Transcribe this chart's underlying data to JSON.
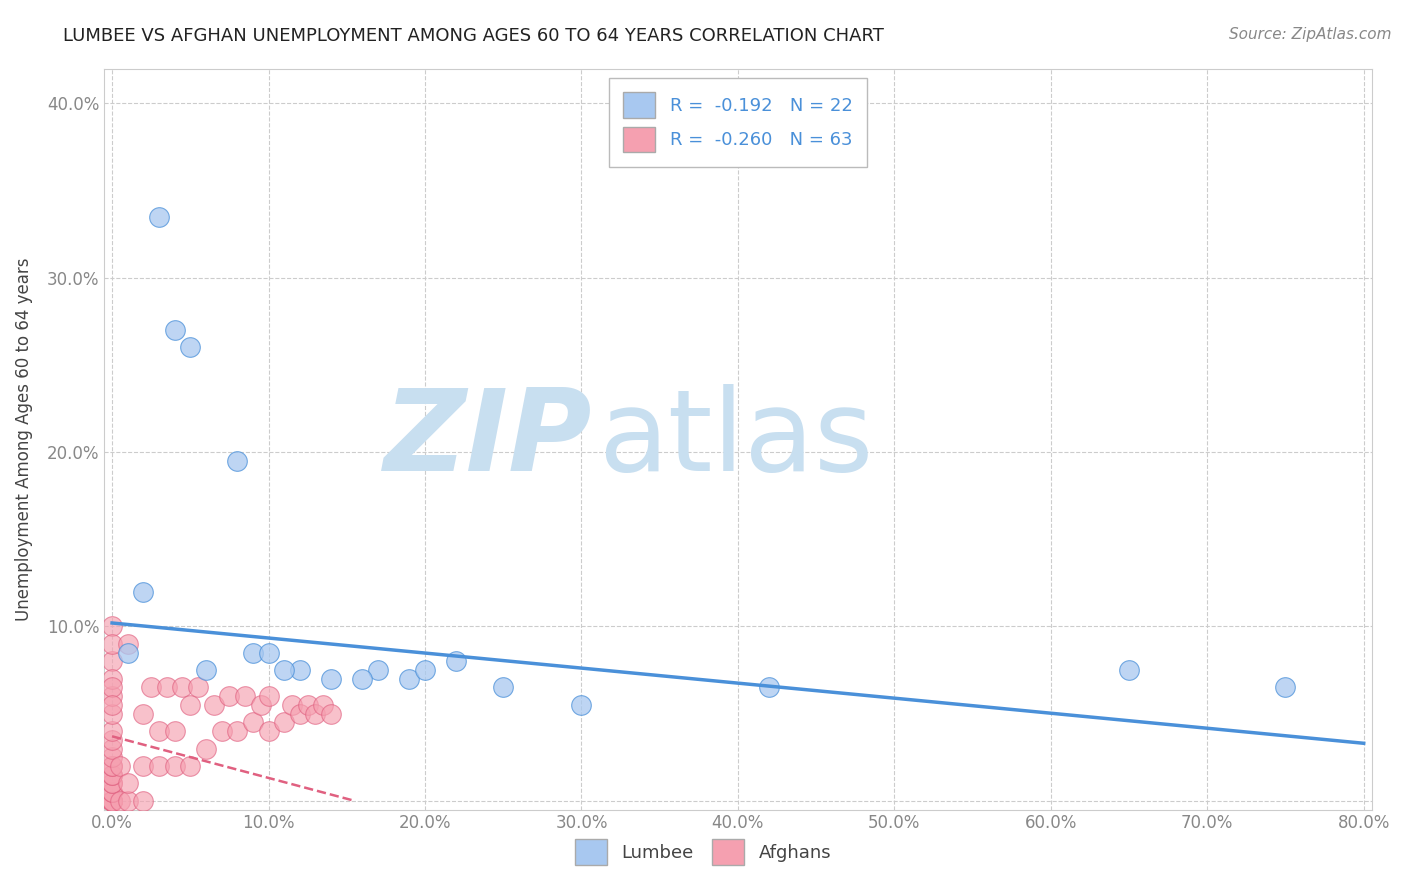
{
  "title": "LUMBEE VS AFGHAN UNEMPLOYMENT AMONG AGES 60 TO 64 YEARS CORRELATION CHART",
  "source": "Source: ZipAtlas.com",
  "ylabel": "Unemployment Among Ages 60 to 64 years",
  "xlim": [
    -0.005,
    0.805
  ],
  "ylim": [
    -0.005,
    0.42
  ],
  "xticks": [
    0.0,
    0.1,
    0.2,
    0.3,
    0.4,
    0.5,
    0.6,
    0.7,
    0.8
  ],
  "xticklabels": [
    "0.0%",
    "10.0%",
    "20.0%",
    "30.0%",
    "40.0%",
    "50.0%",
    "60.0%",
    "70.0%",
    "80.0%"
  ],
  "yticks": [
    0.0,
    0.1,
    0.2,
    0.3,
    0.4
  ],
  "yticklabels": [
    "",
    "10.0%",
    "20.0%",
    "30.0%",
    "40.0%"
  ],
  "lumbee_R": "-0.192",
  "lumbee_N": "22",
  "afghan_R": "-0.260",
  "afghan_N": "63",
  "lumbee_color": "#a8c8f0",
  "afghan_color": "#f5a0b0",
  "lumbee_line_color": "#4a90d9",
  "afghan_line_color": "#e06080",
  "watermark_zip": "ZIP",
  "watermark_atlas": "atlas",
  "watermark_color": "#c8dff0",
  "legend_label_lumbee": "Lumbee",
  "legend_label_afghan": "Afghans",
  "lumbee_x": [
    0.02,
    0.03,
    0.04,
    0.05,
    0.08,
    0.09,
    0.1,
    0.12,
    0.14,
    0.17,
    0.19,
    0.2,
    0.22,
    0.25,
    0.3,
    0.42,
    0.65,
    0.75,
    0.01,
    0.06,
    0.11,
    0.16
  ],
  "lumbee_y": [
    0.12,
    0.335,
    0.27,
    0.26,
    0.195,
    0.085,
    0.085,
    0.075,
    0.07,
    0.075,
    0.07,
    0.075,
    0.08,
    0.065,
    0.055,
    0.065,
    0.075,
    0.065,
    0.085,
    0.075,
    0.075,
    0.07
  ],
  "afghan_x": [
    0.0,
    0.0,
    0.0,
    0.0,
    0.0,
    0.0,
    0.0,
    0.0,
    0.0,
    0.0,
    0.0,
    0.0,
    0.0,
    0.0,
    0.0,
    0.0,
    0.0,
    0.0,
    0.0,
    0.0,
    0.0,
    0.0,
    0.0,
    0.0,
    0.0,
    0.0,
    0.0,
    0.0,
    0.005,
    0.005,
    0.01,
    0.01,
    0.01,
    0.02,
    0.02,
    0.02,
    0.025,
    0.03,
    0.03,
    0.035,
    0.04,
    0.04,
    0.045,
    0.05,
    0.05,
    0.055,
    0.06,
    0.065,
    0.07,
    0.075,
    0.08,
    0.085,
    0.09,
    0.095,
    0.1,
    0.1,
    0.11,
    0.115,
    0.12,
    0.125,
    0.13,
    0.135,
    0.14
  ],
  "afghan_y": [
    0.0,
    0.0,
    0.0,
    0.0,
    0.0,
    0.0,
    0.0,
    0.0,
    0.005,
    0.005,
    0.01,
    0.01,
    0.015,
    0.015,
    0.02,
    0.02,
    0.025,
    0.03,
    0.035,
    0.04,
    0.05,
    0.06,
    0.1,
    0.08,
    0.09,
    0.07,
    0.065,
    0.055,
    0.0,
    0.02,
    0.0,
    0.01,
    0.09,
    0.0,
    0.02,
    0.05,
    0.065,
    0.02,
    0.04,
    0.065,
    0.02,
    0.04,
    0.065,
    0.02,
    0.055,
    0.065,
    0.03,
    0.055,
    0.04,
    0.06,
    0.04,
    0.06,
    0.045,
    0.055,
    0.04,
    0.06,
    0.045,
    0.055,
    0.05,
    0.055,
    0.05,
    0.055,
    0.05
  ],
  "lumbee_line_x0": 0.0,
  "lumbee_line_x1": 0.8,
  "lumbee_line_y0": 0.102,
  "lumbee_line_y1": 0.033,
  "afghan_line_x0": 0.0,
  "afghan_line_x1": 0.155,
  "afghan_line_y0": 0.037,
  "afghan_line_y1": 0.0,
  "figsize": [
    14.06,
    8.92
  ],
  "dpi": 100,
  "background_color": "#ffffff",
  "grid_color": "#cccccc",
  "grid_style": "--",
  "tick_color": "#888888",
  "axis_color": "#cccccc"
}
